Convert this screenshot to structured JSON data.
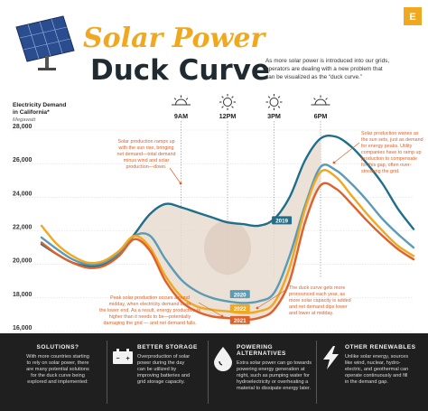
{
  "header": {
    "title_line1": "Solar Power",
    "title_line2": "Duck Curve",
    "intro": [
      "As more solar power is introduced into our grids,",
      "operators are dealing with a new problem that",
      "can be visualized as the “duck curve.”"
    ],
    "brand_mark": "E"
  },
  "chart_data": {
    "type": "line",
    "title": "",
    "ylabel": [
      "Electricity Demand",
      "in California*"
    ],
    "yunit": "Megawatt",
    "ylim": [
      16000,
      28000
    ],
    "yticks": [
      16000,
      18000,
      20000,
      22000,
      24000,
      26000,
      28000
    ],
    "ytick_labels": [
      "16,000",
      "18,000",
      "20,000",
      "22,000",
      "24,000",
      "26,000",
      "28,000"
    ],
    "xlim": [
      0,
      24
    ],
    "time_markers": [
      {
        "hour": 9,
        "label": "9AM"
      },
      {
        "hour": 12,
        "label": "12PM"
      },
      {
        "hour": 15,
        "label": "3PM"
      },
      {
        "hour": 18,
        "label": "6PM"
      }
    ],
    "x": [
      0,
      1,
      2,
      3,
      4,
      5,
      6,
      7,
      8,
      9,
      10,
      11,
      12,
      13,
      14,
      15,
      16,
      17,
      18,
      19,
      20,
      21,
      22,
      23,
      24
    ],
    "series": [
      {
        "name": "2019",
        "color": "#1f6f8b",
        "values": [
          21200,
          20600,
          20100,
          19900,
          20000,
          20600,
          21800,
          23000,
          23600,
          23400,
          23100,
          22800,
          22500,
          22400,
          22300,
          22700,
          24000,
          26200,
          27500,
          27600,
          27000,
          26000,
          24800,
          23300,
          22100
        ]
      },
      {
        "name": "2020",
        "color": "#5b9bb5",
        "values": [
          21600,
          20900,
          20300,
          20000,
          20100,
          20700,
          21700,
          21700,
          20300,
          19100,
          18400,
          18000,
          17800,
          17700,
          17800,
          18300,
          20500,
          23500,
          25800,
          25600,
          24800,
          23800,
          22700,
          21800,
          21000
        ]
      },
      {
        "name": "2022",
        "color": "#f0a820",
        "values": [
          22300,
          21200,
          20500,
          20100,
          20200,
          20800,
          21700,
          21000,
          19300,
          18100,
          17500,
          17300,
          17200,
          17100,
          17200,
          17700,
          19800,
          23300,
          25500,
          25200,
          24100,
          23000,
          22000,
          21100,
          20500
        ]
      },
      {
        "name": "2021",
        "color": "#e0602a",
        "values": [
          21300,
          20600,
          20100,
          19800,
          19900,
          20500,
          21500,
          20800,
          19000,
          17800,
          17200,
          16900,
          16800,
          16700,
          16800,
          17300,
          19000,
          22500,
          24700,
          24500,
          23600,
          22600,
          21700,
          20900,
          20300
        ]
      }
    ],
    "annotations": [
      [
        "Solar production ramps up",
        "with the sun rise, bringing",
        "net demand—total demand",
        "minus wind and solar",
        "production—down."
      ],
      [
        "Peak solar production occurs around",
        "midday, when electricity demand is on",
        "the lower end. As a result, energy production is",
        "higher than it needs to be—potentially",
        "damaging the grid — and net demand falls."
      ],
      [
        "Solar production wanes as",
        "the sun sets, just as demand",
        "for energy peaks. Utility",
        "companies have to ramp up",
        "production to compensate",
        "for this gap, often over-",
        "stressing the grid."
      ],
      [
        "The duck curve gets more",
        "pronounced each year, as",
        "more solar capacity is added",
        "and net demand dips lower",
        "and lower at midday."
      ]
    ]
  },
  "footer": {
    "columns": [
      {
        "heading": "SOLUTIONS?",
        "icon": "none",
        "body": [
          "With more countries starting",
          "to rely on solar power, there",
          "are many potential solutions",
          "for the duck curve being",
          "explored and implemented:"
        ]
      },
      {
        "heading": "BETTER STORAGE",
        "icon": "battery-icon",
        "body": [
          "Overproduction of solar",
          "power during the day",
          "can be utilized by",
          "improving batteries and",
          "grid storage capacity."
        ]
      },
      {
        "heading": "POWERING ALTERNATIVES",
        "icon": "water-drop-icon",
        "body": [
          "Extra solar power can go towards",
          "powering energy generation at",
          "night, such as pumping water for",
          "hydroelectricity or overheating a",
          "material to dissipate energy later."
        ]
      },
      {
        "heading": "OTHER RENEWABLES",
        "icon": "lightning-bolt-icon",
        "body": [
          "Unlike solar energy, sources",
          "like wind, nuclear, hydro-",
          "electric, and geothermal can",
          "operate continuously and fill",
          "in the demand gap."
        ]
      }
    ]
  }
}
